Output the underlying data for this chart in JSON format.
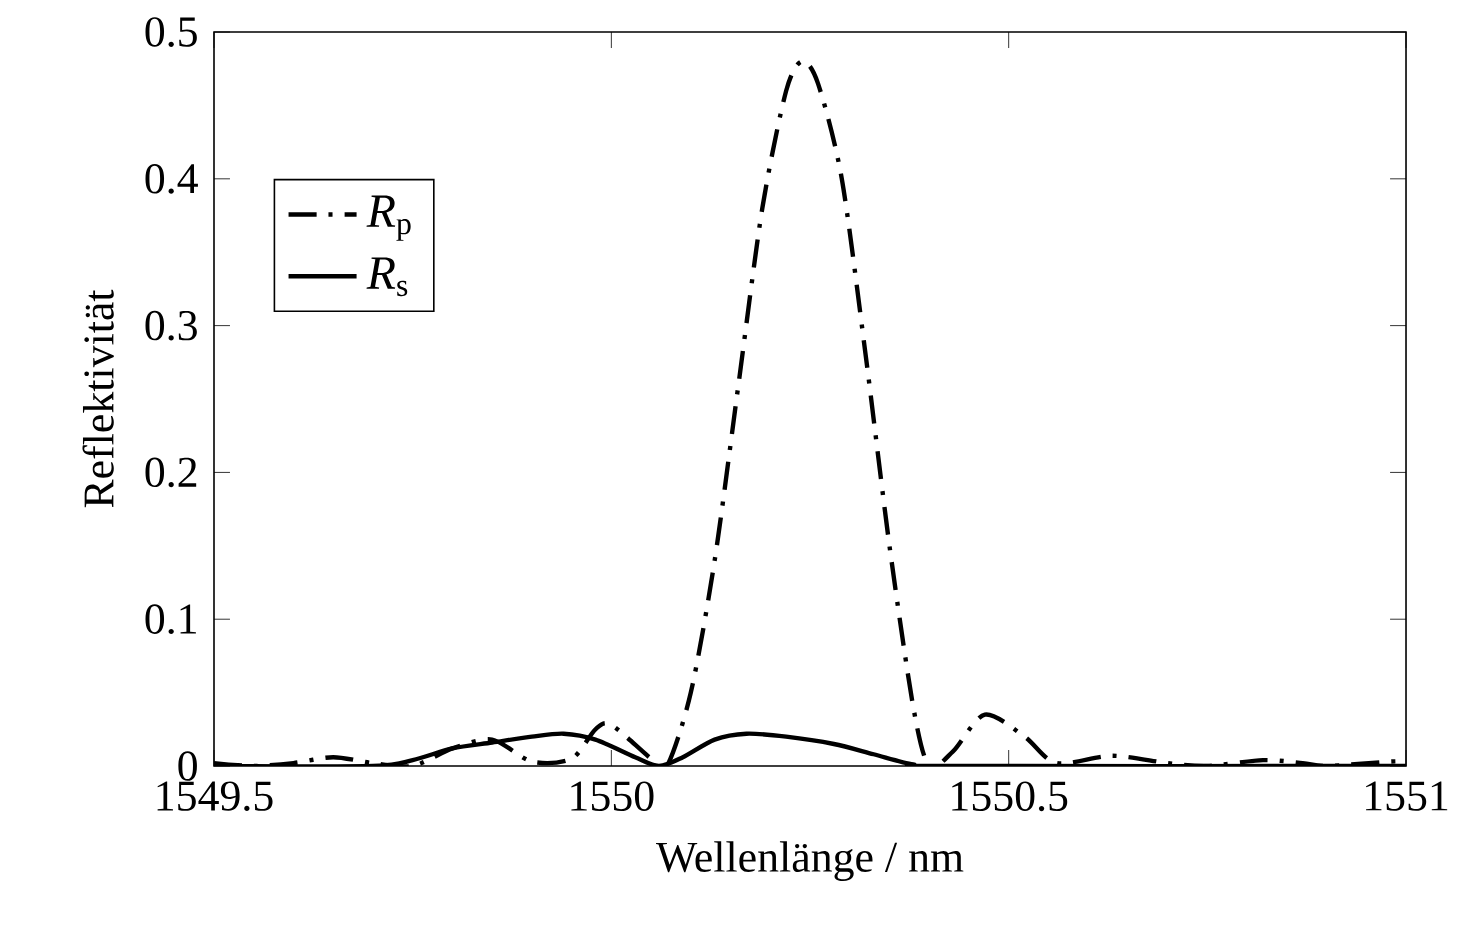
{
  "chart_data": {
    "type": "line",
    "xlabel": "Wellenlänge / nm",
    "ylabel": "Reflektivität",
    "xlim": [
      1549.5,
      1551
    ],
    "xticks": [
      1549.5,
      1550,
      1550.5,
      1551
    ],
    "ylim": [
      0,
      0.5
    ],
    "yticks": [
      0,
      0.1,
      0.2,
      0.3,
      0.4,
      0.5
    ],
    "legend": "top left",
    "grid": false,
    "series": [
      {
        "name": "*R*$_{p}$",
        "color": "#000000",
        "line_style": "dashdot",
        "x": [
          1549.5,
          1549.55,
          1549.6,
          1549.65,
          1549.7,
          1549.75,
          1549.8,
          1549.85,
          1549.9,
          1549.95,
          1549.98,
          1550.0,
          1550.05,
          1550.07,
          1550.1,
          1550.13,
          1550.16,
          1550.19,
          1550.22,
          1550.24,
          1550.26,
          1550.29,
          1550.32,
          1550.35,
          1550.38,
          1550.4,
          1550.43,
          1550.47,
          1550.52,
          1550.56,
          1550.63,
          1550.7,
          1550.75,
          1550.82,
          1550.87,
          1550.9,
          1550.98,
          1551
        ],
        "values": [
          0.002,
          0,
          0.002,
          0.006,
          0.002,
          0,
          0.012,
          0.018,
          0.003,
          0.005,
          0.025,
          0.028,
          0.005,
          0,
          0.05,
          0.14,
          0.26,
          0.38,
          0.46,
          0.48,
          0.465,
          0.4,
          0.28,
          0.15,
          0.04,
          0,
          0.01,
          0.035,
          0.02,
          0.002,
          0.007,
          0.002,
          0,
          0.004,
          0.002,
          0,
          0.003,
          0.003
        ]
      },
      {
        "name": "*R*$_{s}$",
        "color": "#000000",
        "line_style": "solid",
        "x": [
          1549.5,
          1549.7,
          1549.75,
          1549.8,
          1549.85,
          1549.9,
          1549.94,
          1549.98,
          1550.03,
          1550.06,
          1550.09,
          1550.13,
          1550.17,
          1550.22,
          1550.28,
          1550.33,
          1550.38,
          1550.42,
          1551
        ],
        "values": [
          0,
          0,
          0.004,
          0.012,
          0.016,
          0.02,
          0.022,
          0.018,
          0.006,
          0,
          0.006,
          0.018,
          0.022,
          0.02,
          0.015,
          0.008,
          0.001,
          0,
          0
        ]
      }
    ]
  }
}
